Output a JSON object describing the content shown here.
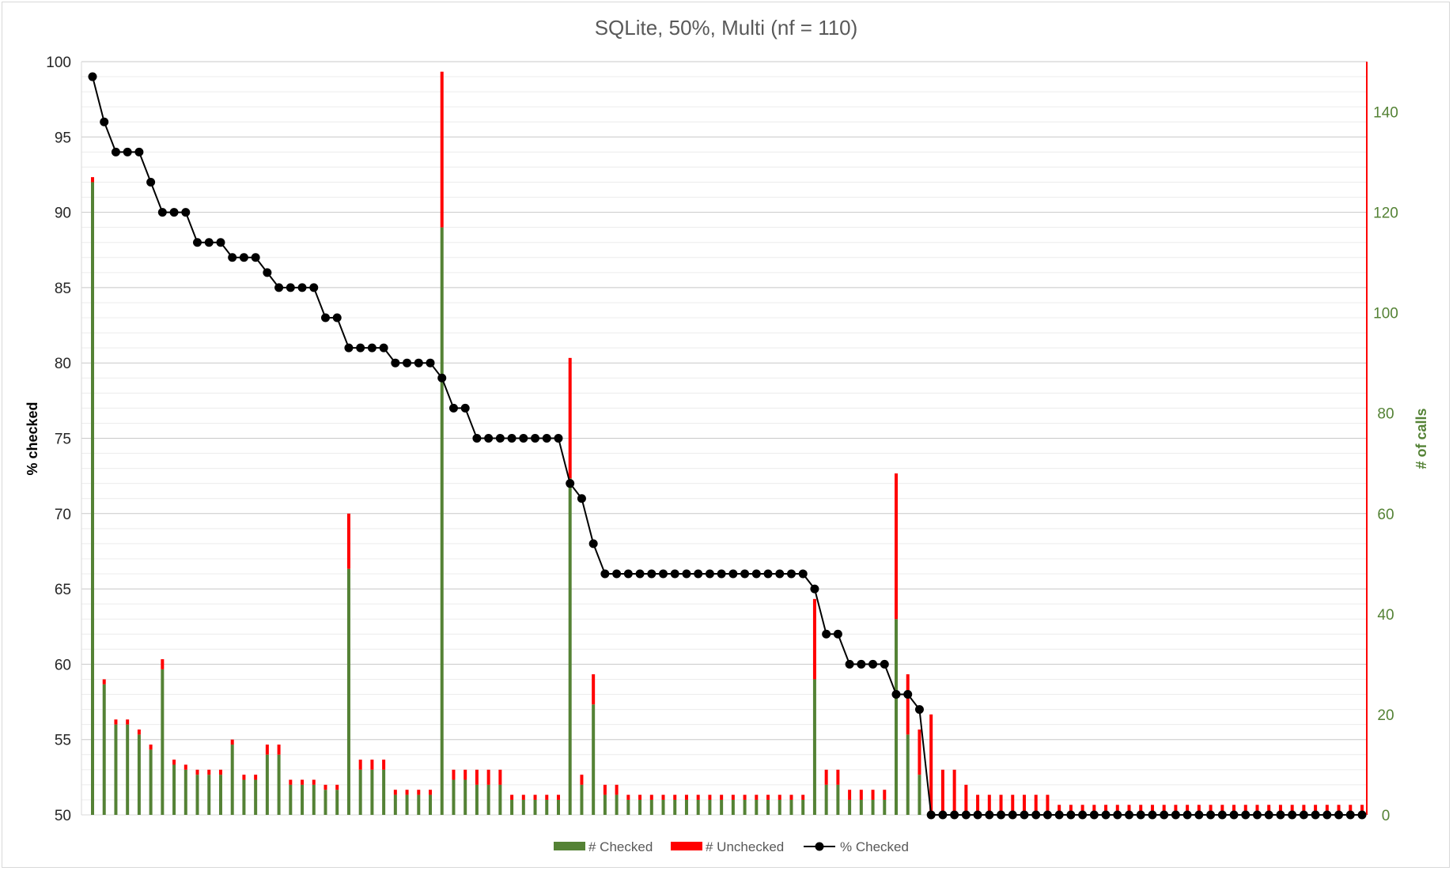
{
  "chart_data": {
    "type": "bar",
    "title": "SQLite, 50%, Multi (nf = 110)",
    "ylabel": "% checked",
    "y2label": "# of calls",
    "ylim": [
      50,
      100
    ],
    "y2lim": [
      0,
      150
    ],
    "yticks": [
      "50",
      "55",
      "60",
      "65",
      "70",
      "75",
      "80",
      "85",
      "90",
      "95",
      "100"
    ],
    "y2ticks": [
      "0",
      "20",
      "40",
      "60",
      "80",
      "100",
      "120",
      "140"
    ],
    "grid": true,
    "legend_position": "bottom",
    "series": [
      {
        "name": "# Checked",
        "kind": "stacked-bar",
        "axis": "right",
        "color": "#548235",
        "values": [
          126,
          26,
          18,
          18,
          16,
          13,
          29,
          10,
          9,
          8,
          8,
          8,
          14,
          7,
          7,
          12,
          12,
          6,
          6,
          6,
          5,
          5,
          49,
          9,
          9,
          9,
          4,
          4,
          4,
          4,
          117,
          7,
          7,
          6,
          6,
          6,
          3,
          3,
          3,
          3,
          3,
          67,
          6,
          22,
          4,
          4,
          3,
          3,
          3,
          3,
          3,
          3,
          3,
          3,
          3,
          3,
          3,
          3,
          3,
          3,
          3,
          3,
          27,
          6,
          6,
          3,
          3,
          3,
          3,
          39,
          16,
          8,
          0,
          0,
          0,
          0,
          0,
          0,
          0,
          0,
          0,
          0,
          0,
          0,
          0,
          0,
          0,
          0,
          0,
          0,
          0,
          0,
          0,
          0,
          0,
          0,
          0,
          0,
          0,
          0,
          0,
          0,
          0,
          0,
          0,
          0,
          0,
          0,
          0,
          0
        ]
      },
      {
        "name": "# Unchecked",
        "kind": "stacked-bar",
        "axis": "right",
        "color": "#ff0000",
        "values": [
          1,
          1,
          1,
          1,
          1,
          1,
          2,
          1,
          1,
          1,
          1,
          1,
          1,
          1,
          1,
          2,
          2,
          1,
          1,
          1,
          1,
          1,
          11,
          2,
          2,
          2,
          1,
          1,
          1,
          1,
          31,
          2,
          2,
          3,
          3,
          3,
          1,
          1,
          1,
          1,
          1,
          24,
          2,
          6,
          2,
          2,
          1,
          1,
          1,
          1,
          1,
          1,
          1,
          1,
          1,
          1,
          1,
          1,
          1,
          1,
          1,
          1,
          16,
          3,
          3,
          2,
          2,
          2,
          2,
          29,
          12,
          9,
          20,
          9,
          9,
          6,
          4,
          4,
          4,
          4,
          4,
          4,
          4,
          2,
          2,
          2,
          2,
          2,
          2,
          2,
          2,
          2,
          2,
          2,
          2,
          2,
          2,
          2,
          2,
          2,
          2,
          2,
          2,
          2,
          2,
          2,
          2,
          2,
          2,
          2
        ]
      },
      {
        "name": "% Checked",
        "kind": "line",
        "axis": "left",
        "color": "#000000",
        "values": [
          99,
          96,
          94,
          94,
          94,
          92,
          90,
          90,
          90,
          88,
          88,
          88,
          87,
          87,
          87,
          86,
          85,
          85,
          85,
          85,
          83,
          83,
          81,
          81,
          81,
          81,
          80,
          80,
          80,
          80,
          79,
          77,
          77,
          75,
          75,
          75,
          75,
          75,
          75,
          75,
          75,
          72,
          71,
          68,
          66,
          66,
          66,
          66,
          66,
          66,
          66,
          66,
          66,
          66,
          66,
          66,
          66,
          66,
          66,
          66,
          66,
          66,
          65,
          62,
          62,
          60,
          60,
          60,
          60,
          58,
          58,
          57,
          50,
          50,
          50,
          50,
          50,
          50,
          50,
          50,
          50,
          50,
          50,
          50,
          50,
          50,
          50,
          50,
          50,
          50,
          50,
          50,
          50,
          50,
          50,
          50,
          50,
          50,
          50,
          50,
          50,
          50,
          50,
          50,
          50,
          50,
          50,
          50,
          50,
          50
        ]
      }
    ]
  },
  "legend": {
    "checked_label": "# Checked",
    "unchecked_label": "# Unchecked",
    "pct_label": "% Checked"
  }
}
